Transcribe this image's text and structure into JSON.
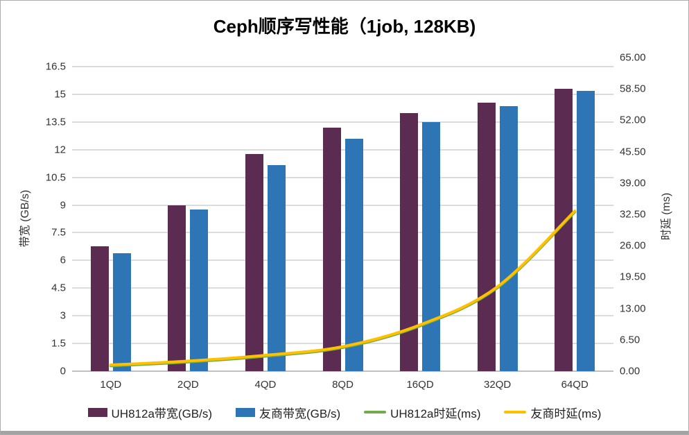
{
  "title": "Ceph顺序写性能（1job, 128KB)",
  "chart_data": {
    "type": "bar",
    "subtype": "grouped-bars-with-lines-dual-axis",
    "title": "Ceph顺序写性能（1job, 128KB)",
    "categories": [
      "1QD",
      "2QD",
      "4QD",
      "8QD",
      "16QD",
      "32QD",
      "64QD"
    ],
    "series": [
      {
        "key": "uh812a-bandwidth",
        "name": "UH812a带宽(GB/s)",
        "type": "bar",
        "axis": "left",
        "color": "#5B2B52",
        "values": [
          6.75,
          9.0,
          11.75,
          13.2,
          14.0,
          14.55,
          15.3
        ]
      },
      {
        "key": "vendor-bandwidth",
        "name": "友商带宽(GB/s)",
        "type": "bar",
        "axis": "left",
        "color": "#2E75B6",
        "values": [
          6.4,
          8.75,
          11.15,
          12.6,
          13.5,
          14.35,
          15.2
        ]
      },
      {
        "key": "uh812a-latency",
        "name": "UH812a时延(ms)",
        "type": "line",
        "axis": "right",
        "color": "#70AD47",
        "values": [
          1.1,
          1.9,
          3.1,
          4.9,
          9.4,
          17.3,
          33.0
        ]
      },
      {
        "key": "vendor-latency",
        "name": "友商时延(ms)",
        "type": "line",
        "axis": "right",
        "color": "#FFC000",
        "values": [
          1.3,
          2.1,
          3.3,
          5.1,
          9.6,
          17.5,
          33.2
        ]
      }
    ],
    "left_axis": {
      "label": "带宽 (GB/s)",
      "min": 0,
      "max": 16.5,
      "step": 1.5,
      "ticks": [
        "0",
        "1.5",
        "3",
        "4.5",
        "6",
        "7.5",
        "9",
        "10.5",
        "12",
        "13.5",
        "15",
        "16.5"
      ]
    },
    "right_axis": {
      "label": "时延 (ms)",
      "min": 0,
      "max": 65,
      "step": 6.5,
      "ticks": [
        "0.00",
        "6.50",
        "13.00",
        "19.50",
        "26.00",
        "32.50",
        "39.00",
        "45.50",
        "52.00",
        "58.50",
        "65.00"
      ]
    },
    "grid": "horizontal",
    "legend_position": "bottom",
    "colors": {
      "gridline": "#DBDBDB",
      "axis_line": "#C0C0C0",
      "text": "#333333",
      "title_text": "#000000"
    }
  }
}
